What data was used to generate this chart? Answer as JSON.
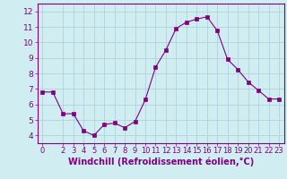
{
  "x": [
    0,
    1,
    2,
    3,
    4,
    5,
    6,
    7,
    8,
    9,
    10,
    11,
    12,
    13,
    14,
    15,
    16,
    17,
    18,
    19,
    20,
    21,
    22,
    23
  ],
  "y": [
    6.8,
    6.8,
    5.4,
    5.4,
    4.3,
    4.0,
    4.7,
    4.8,
    4.5,
    4.9,
    6.3,
    8.4,
    9.5,
    10.9,
    11.3,
    11.5,
    11.65,
    10.75,
    8.9,
    8.25,
    7.45,
    6.9,
    6.35,
    6.35
  ],
  "line_color": "#800080",
  "marker_color": "#800080",
  "bg_color": "#d0edf2",
  "grid_color": "#aacdd8",
  "xlabel": "Windchill (Refroidissement éolien,°C)",
  "xlim_min": -0.5,
  "xlim_max": 23.5,
  "ylim_min": 3.5,
  "ylim_max": 12.5,
  "yticks": [
    4,
    5,
    6,
    7,
    8,
    9,
    10,
    11,
    12
  ],
  "xticks": [
    0,
    2,
    3,
    4,
    5,
    6,
    7,
    8,
    9,
    10,
    11,
    12,
    13,
    14,
    15,
    16,
    17,
    18,
    19,
    20,
    21,
    22,
    23
  ],
  "xtick_labels": [
    "0",
    "2",
    "3",
    "4",
    "5",
    "6",
    "7",
    "8",
    "9",
    "10",
    "11",
    "12",
    "13",
    "14",
    "15",
    "16",
    "17",
    "18",
    "19",
    "20",
    "21",
    "22",
    "23"
  ],
  "tick_color": "#800080",
  "label_color": "#800080",
  "font_size": 6.5,
  "xlabel_fontsize": 7.0,
  "linewidth": 0.8,
  "markersize": 2.2
}
